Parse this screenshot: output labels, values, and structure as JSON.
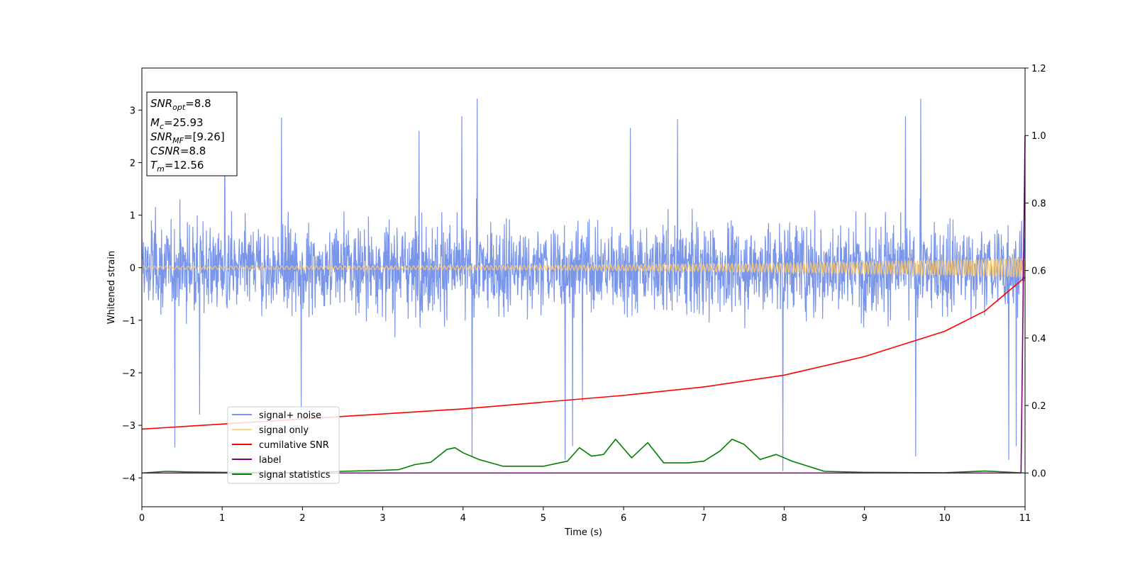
{
  "chart_data": {
    "type": "line",
    "xlabel": "Time (s)",
    "ylabel": "Whitened strain",
    "xlim": [
      0,
      11
    ],
    "ylim": [
      -4.55,
      3.8
    ],
    "y2lim": [
      -0.1,
      1.2
    ],
    "x_ticks": [
      "0",
      "1",
      "2",
      "3",
      "4",
      "5",
      "6",
      "7",
      "8",
      "9",
      "10",
      "11"
    ],
    "y_ticks": [
      "−4",
      "−3",
      "−2",
      "−1",
      "0",
      "1",
      "2",
      "3"
    ],
    "y2_ticks": [
      "0.0",
      "0.2",
      "0.4",
      "0.6",
      "0.8",
      "1.0",
      "1.2"
    ],
    "grid": false,
    "legend_position": "lower-left",
    "annotations": {
      "snr_opt": {
        "base": "SNR",
        "sub": "opt",
        "value": "=8.8"
      },
      "mc": {
        "base": "M",
        "sub": "c",
        "value": "=25.93"
      },
      "snr_mf": {
        "base": "SNR",
        "sub": "MF",
        "value": "=[9.26]"
      },
      "csnr": {
        "base": "CSNR",
        "sub": "",
        "value": "=8.8"
      },
      "tm": {
        "base": "T",
        "sub": "m",
        "value": "=12.56"
      }
    },
    "series": [
      {
        "name": "signal+ noise",
        "axis": "left",
        "color": "#4169e1",
        "noise_band_lower": -1.5,
        "noise_band_upper": 1.5,
        "noise_peaks_upper": [
          3.3,
          3.4,
          3.0,
          3.0
        ],
        "noise_peaks_lower": [
          -4.2,
          -3.95,
          -3.3,
          -3.1
        ]
      },
      {
        "name": "signal only",
        "axis": "left",
        "color": "#ffc966",
        "amplitude_start": 0.03,
        "amplitude_end": 0.18
      },
      {
        "name": "cumilative SNR",
        "axis": "right",
        "color": "#ff0000",
        "x": [
          0,
          1,
          2,
          3,
          4,
          5,
          6,
          7,
          8,
          9,
          10,
          10.5,
          11
        ],
        "values": [
          0.13,
          0.145,
          0.16,
          0.175,
          0.19,
          0.21,
          0.23,
          0.255,
          0.29,
          0.345,
          0.42,
          0.48,
          0.58
        ]
      },
      {
        "name": "label",
        "axis": "right",
        "color": "#800080",
        "x": [
          0,
          10.95,
          11
        ],
        "values": [
          0.0,
          0.0,
          1.0
        ]
      },
      {
        "name": "signal statistics",
        "axis": "right",
        "color": "#008000",
        "x": [
          0,
          0.3,
          0.6,
          1,
          2,
          2.5,
          3,
          3.2,
          3.4,
          3.6,
          3.8,
          3.9,
          4.0,
          4.2,
          4.5,
          5.0,
          5.3,
          5.45,
          5.6,
          5.75,
          5.9,
          6.1,
          6.3,
          6.5,
          6.8,
          7.0,
          7.2,
          7.35,
          7.5,
          7.7,
          7.9,
          8.1,
          8.3,
          8.5,
          9,
          10,
          10.5,
          11
        ],
        "values": [
          0.0,
          0.005,
          0.003,
          0.002,
          0.001,
          0.005,
          0.008,
          0.01,
          0.025,
          0.032,
          0.07,
          0.075,
          0.06,
          0.04,
          0.02,
          0.02,
          0.035,
          0.075,
          0.05,
          0.055,
          0.1,
          0.045,
          0.09,
          0.03,
          0.03,
          0.035,
          0.065,
          0.1,
          0.085,
          0.04,
          0.055,
          0.035,
          0.02,
          0.005,
          0.002,
          0.001,
          0.006,
          0.0
        ]
      }
    ]
  }
}
